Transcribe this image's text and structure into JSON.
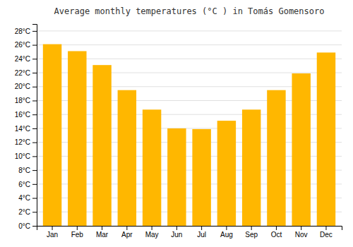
{
  "chart_data": {
    "type": "bar",
    "title": "Average monthly temperatures (°C ) in Tomás Gomensoro",
    "categories": [
      "Jan",
      "Feb",
      "Mar",
      "Apr",
      "May",
      "Jun",
      "Jul",
      "Aug",
      "Sep",
      "Oct",
      "Nov",
      "Dec"
    ],
    "values": [
      26.1,
      25.1,
      23.1,
      19.5,
      16.7,
      14.0,
      13.9,
      15.1,
      16.7,
      19.5,
      21.9,
      24.9
    ],
    "color": "#FFB700",
    "ylim": [
      0,
      29
    ],
    "yticks": [
      {
        "value": 0,
        "label": "0°C"
      },
      {
        "value": 2,
        "label": "2°C"
      },
      {
        "value": 4,
        "label": "4°C"
      },
      {
        "value": 6,
        "label": "6°C"
      },
      {
        "value": 8,
        "label": "8°C"
      },
      {
        "value": 10,
        "label": "10°C"
      },
      {
        "value": 12,
        "label": "12°C"
      },
      {
        "value": 14,
        "label": "14°C"
      },
      {
        "value": 16,
        "label": "16°C"
      },
      {
        "value": 18,
        "label": "18°C"
      },
      {
        "value": 20,
        "label": "20°C"
      },
      {
        "value": 22,
        "label": "22°C"
      },
      {
        "value": 24,
        "label": "24°C"
      },
      {
        "value": 26,
        "label": "26°C"
      },
      {
        "value": 28,
        "label": "28°C"
      }
    ],
    "grid": true
  }
}
